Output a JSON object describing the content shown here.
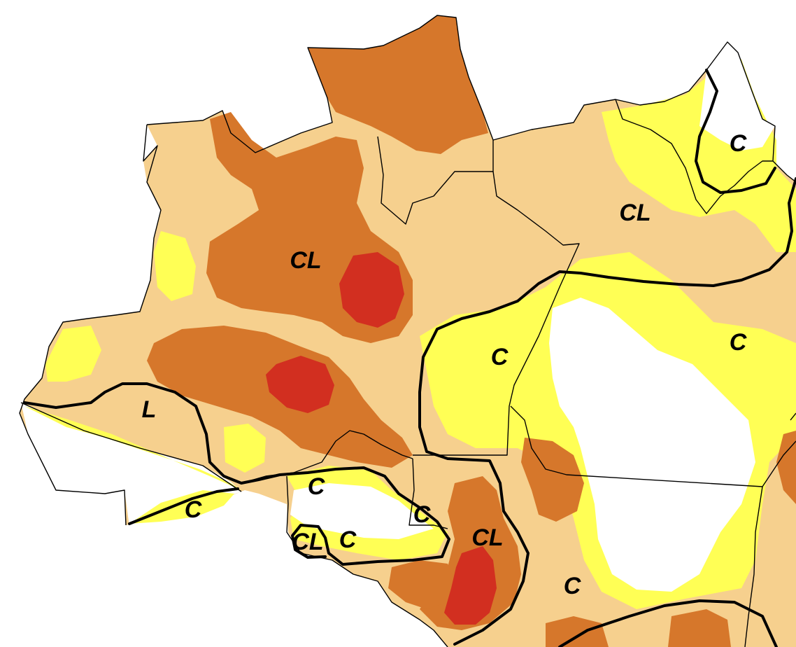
{
  "map": {
    "colors": {
      "background": "#ffffff",
      "white_zone": "#ffffff",
      "light_yellow": "#ffff55",
      "tan": "#f6d08e",
      "orange": "#d6772b",
      "red": "#d22f20",
      "border": "#000000"
    },
    "region_labels": {
      "cl_north": "CL",
      "cl_northeast": "CL",
      "l_west": "L",
      "c_far_east": "C",
      "c_center": "C",
      "c_east": "C",
      "c_southwest": "C",
      "c_south_middle": "C",
      "c_south_pocket": "C",
      "cl_south_small": "CL",
      "c_south_small": "C",
      "cl_southeast": "CL",
      "c_southeast": "C"
    }
  }
}
